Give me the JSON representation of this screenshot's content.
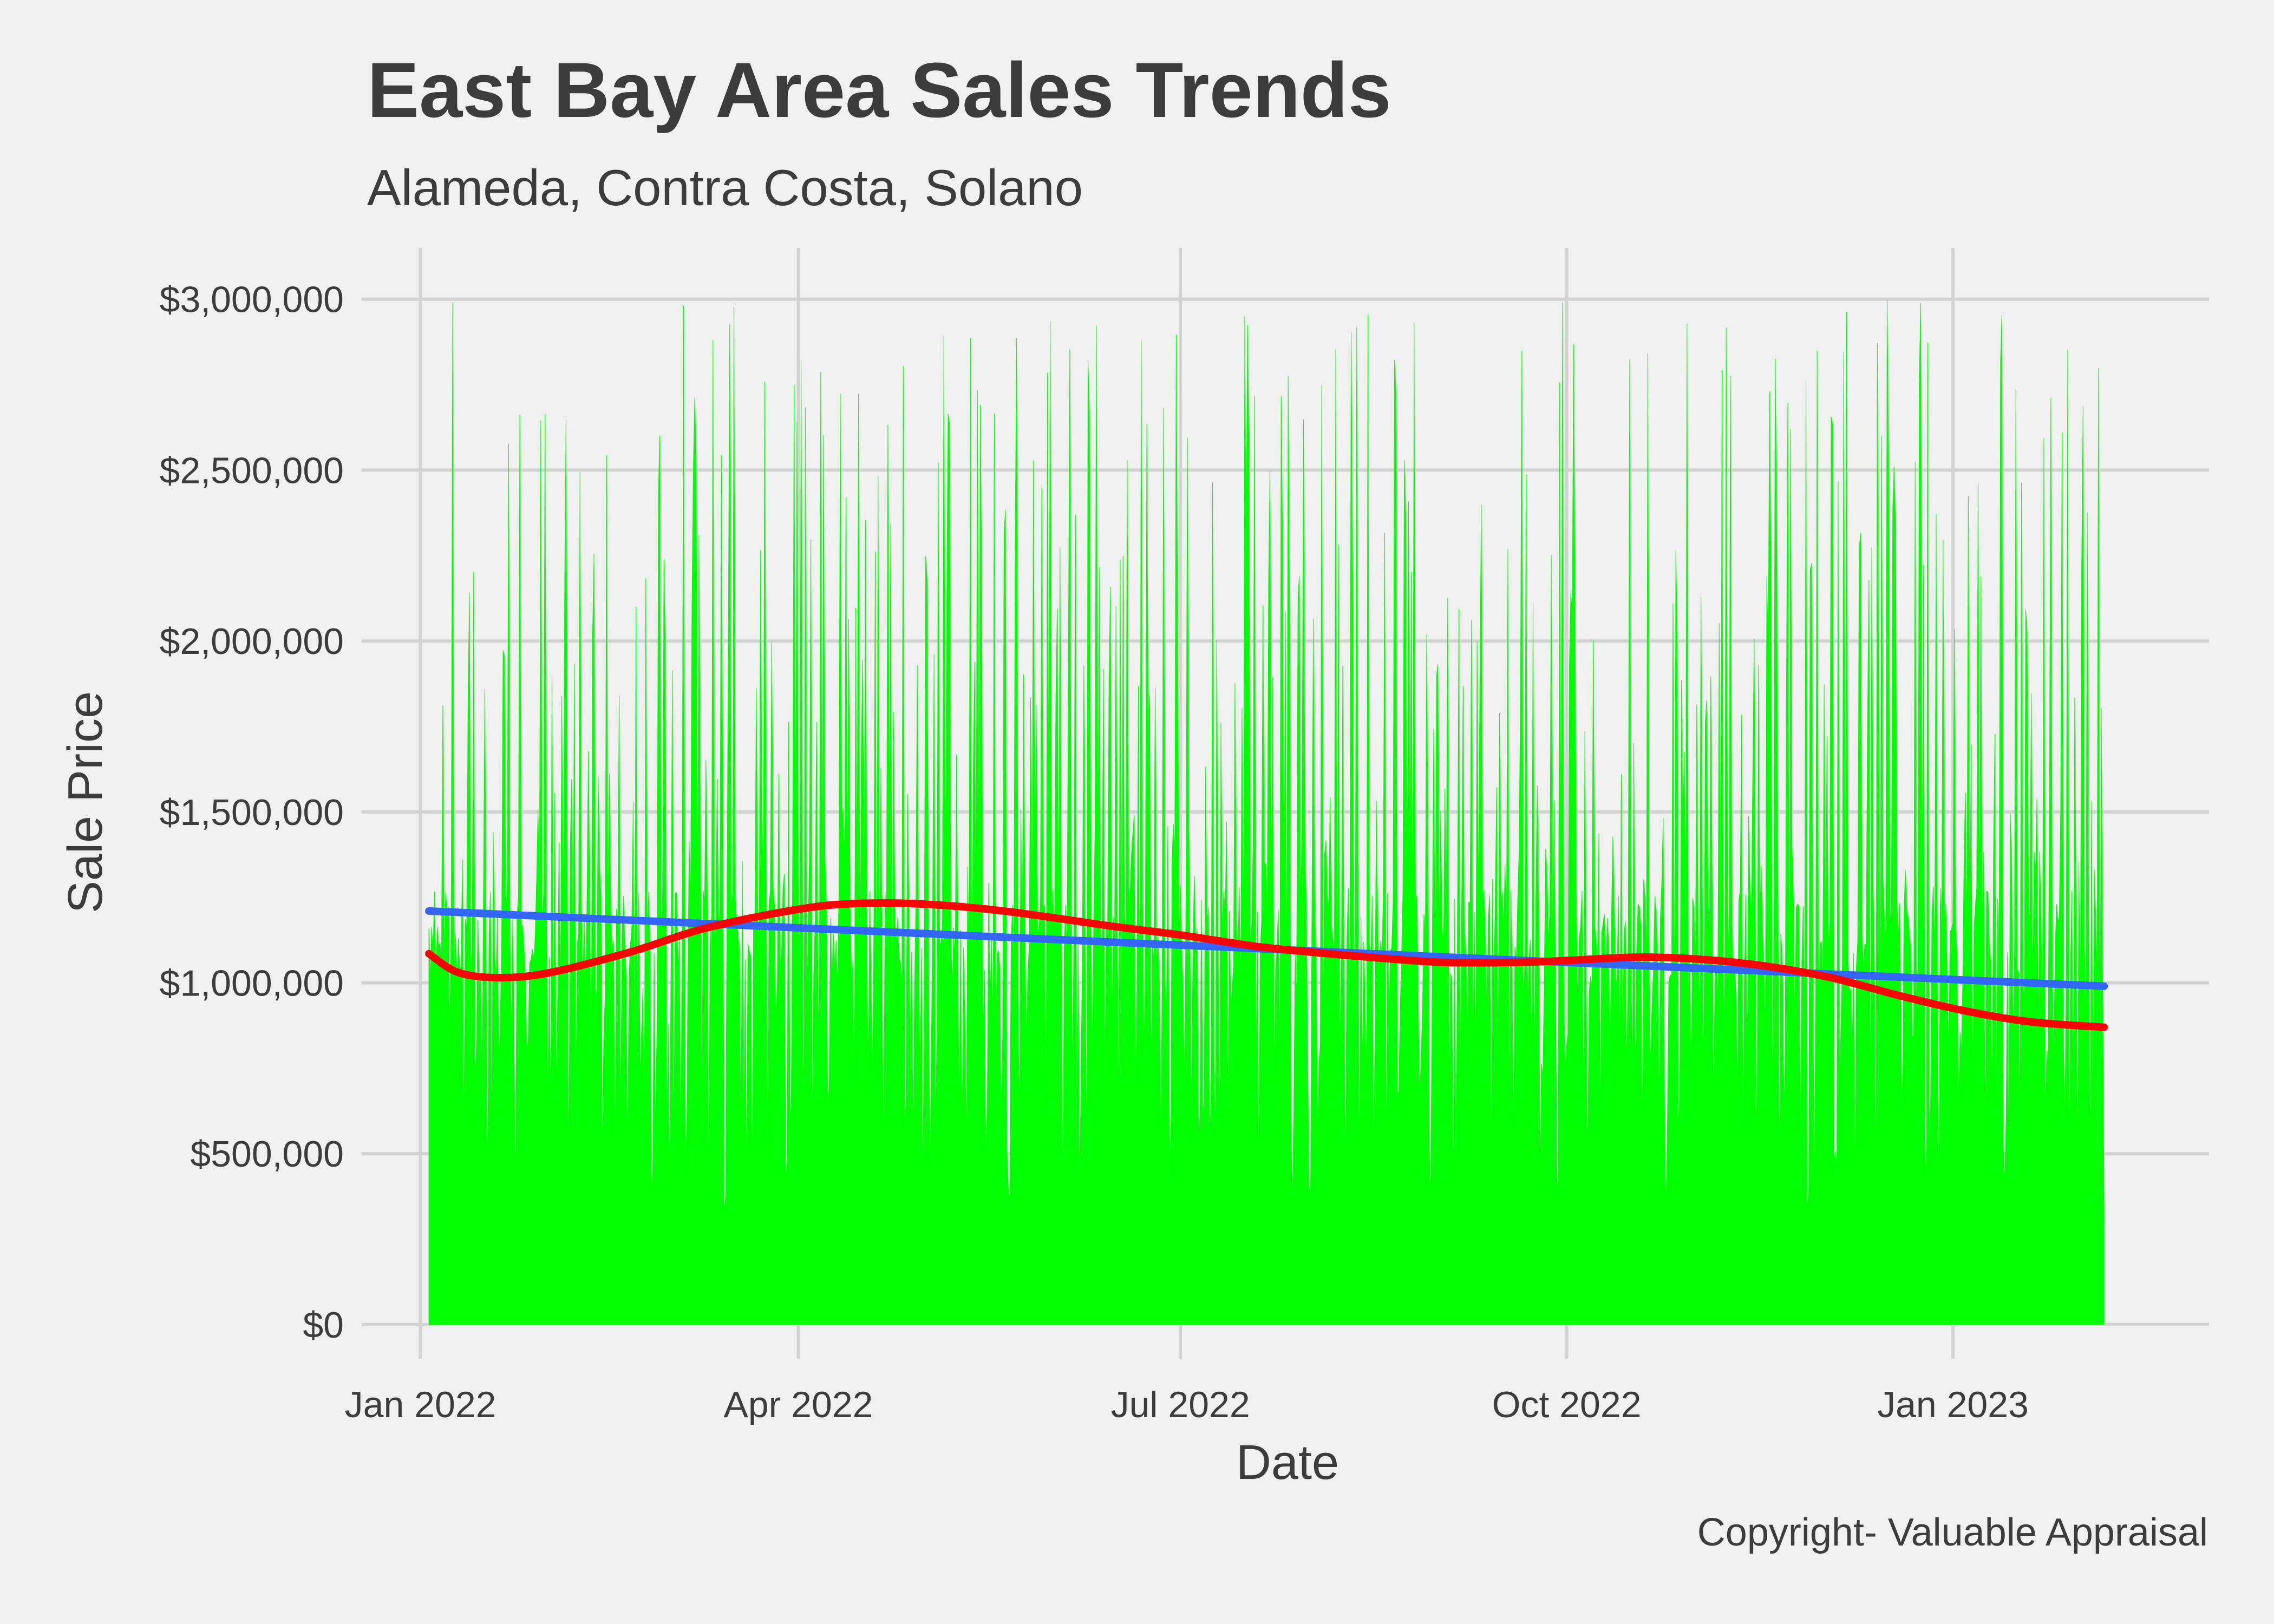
{
  "chart_data": {
    "type": "area",
    "title": "East Bay Area Sales Trends",
    "subtitle": "Alameda, Contra Costa, Solano",
    "caption": "Copyright- Valuable Appraisal",
    "xlabel": "Date",
    "ylabel": "Sale Price",
    "x_ticks": [
      "2022-01-01",
      "2022-04-01",
      "2022-07-01",
      "2022-10-01",
      "2023-01-01"
    ],
    "x_tick_labels": [
      "Jan 2022",
      "Apr 2022",
      "Jul 2022",
      "Oct 2022",
      "Jan 2023"
    ],
    "xlim": [
      "2021-12-18",
      "2023-03-03"
    ],
    "y_ticks": [
      0,
      500000,
      1000000,
      1500000,
      2000000,
      2500000,
      3000000
    ],
    "y_tick_labels": [
      "$0",
      "$500,000",
      "$1,000,000",
      "$1,500,000",
      "$2,000,000",
      "$2,500,000",
      "$3,000,000"
    ],
    "ylim": [
      -100000,
      3150000
    ],
    "grid": true,
    "colors": {
      "sales": "#00ff00",
      "linear_trend": "#3366ff",
      "smooth_trend": "#ff0000",
      "grid": "#d2d2d2",
      "background": "#f0f0f0"
    },
    "series": [
      {
        "type": "area",
        "x_range": [
          "2022-01-03",
          "2023-02-06"
        ],
        "baseline": 0,
        "max": 3000000,
        "typical_floor_range": [
          300000,
          1000000
        ],
        "typical_peak_range": [
          1200000,
          3000000
        ]
      },
      {
        "type": "line",
        "x": [
          "2022-01-03",
          "2022-07-01",
          "2023-02-06"
        ],
        "y": [
          1210000,
          1110000,
          990000
        ]
      },
      {
        "type": "line",
        "x": [
          "2022-01-03",
          "2022-01-10",
          "2022-01-20",
          "2022-02-01",
          "2022-02-20",
          "2022-03-10",
          "2022-04-01",
          "2022-04-15",
          "2022-05-01",
          "2022-05-20",
          "2022-06-15",
          "2022-07-01",
          "2022-07-20",
          "2022-08-10",
          "2022-09-01",
          "2022-09-20",
          "2022-10-01",
          "2022-10-20",
          "2022-11-10",
          "2022-12-01",
          "2022-12-20",
          "2023-01-05",
          "2023-01-20",
          "2023-02-06"
        ],
        "y": [
          1085000,
          1030000,
          1015000,
          1030000,
          1090000,
          1160000,
          1215000,
          1232000,
          1230000,
          1210000,
          1165000,
          1140000,
          1105000,
          1080000,
          1060000,
          1060000,
          1065000,
          1075000,
          1060000,
          1020000,
          960000,
          915000,
          885000,
          870000
        ]
      }
    ]
  }
}
